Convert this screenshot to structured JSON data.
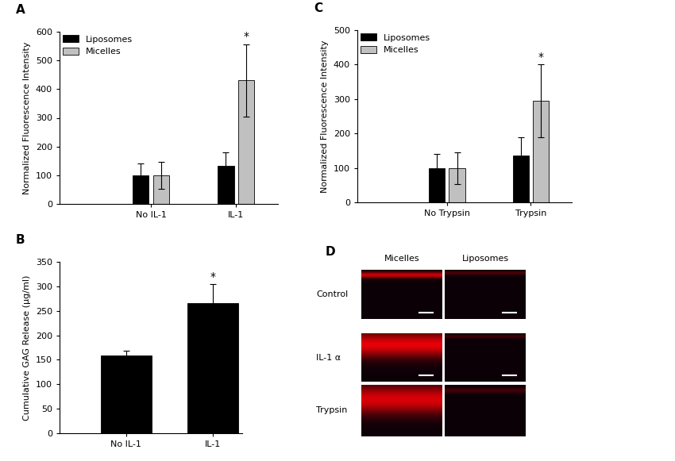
{
  "chart_data": [
    {
      "type": "bar",
      "title": "A",
      "categories": [
        "No IL-1",
        "IL-1"
      ],
      "y_label": "Normalized Fluorescence Intensity",
      "series": [
        {
          "name": "Liposomes",
          "color": "#000000",
          "values": [
            100,
            132
          ],
          "errors": [
            40,
            48
          ]
        },
        {
          "name": "Micelles",
          "color": "#c0c0c0",
          "values": [
            100,
            430
          ],
          "errors": [
            47,
            127
          ]
        }
      ],
      "annotations": [
        {
          "series": "Micelles",
          "category": "IL-1",
          "text": "*"
        }
      ],
      "ylim": [
        0,
        600
      ],
      "yticks": [
        0,
        100,
        200,
        300,
        400,
        500,
        600
      ],
      "legend": "upper left"
    },
    {
      "type": "bar",
      "title": "B",
      "categories": [
        "No IL-1",
        "IL-1"
      ],
      "y_label": "Cumulative GAG Release (µg/ml)",
      "values": [
        159,
        266
      ],
      "errors": [
        9,
        38
      ],
      "color": "#000000",
      "annotations": [
        {
          "category": "IL-1",
          "text": "*"
        }
      ],
      "ylim": [
        0,
        350
      ],
      "yticks": [
        0,
        50,
        100,
        150,
        200,
        250,
        300,
        350
      ]
    },
    {
      "type": "bar",
      "title": "C",
      "categories": [
        "No Trypsin",
        "Trypsin"
      ],
      "y_label": "Normalized Fluorescence Intensity",
      "series": [
        {
          "name": "Liposomes",
          "color": "#000000",
          "values": [
            100,
            137
          ],
          "errors": [
            40,
            52
          ]
        },
        {
          "name": "Micelles",
          "color": "#c0c0c0",
          "values": [
            100,
            295
          ],
          "errors": [
            46,
            105
          ]
        }
      ],
      "annotations": [
        {
          "series": "Micelles",
          "category": "Trypsin",
          "text": "*"
        }
      ],
      "ylim": [
        0,
        500
      ],
      "yticks": [
        0,
        100,
        200,
        300,
        400,
        500
      ],
      "legend": "upper left"
    }
  ],
  "image_panel": {
    "title": "D",
    "columns": [
      "Micelles",
      "Liposomes"
    ],
    "rows": [
      "Control",
      "IL-1 α",
      "Trypsin"
    ]
  }
}
